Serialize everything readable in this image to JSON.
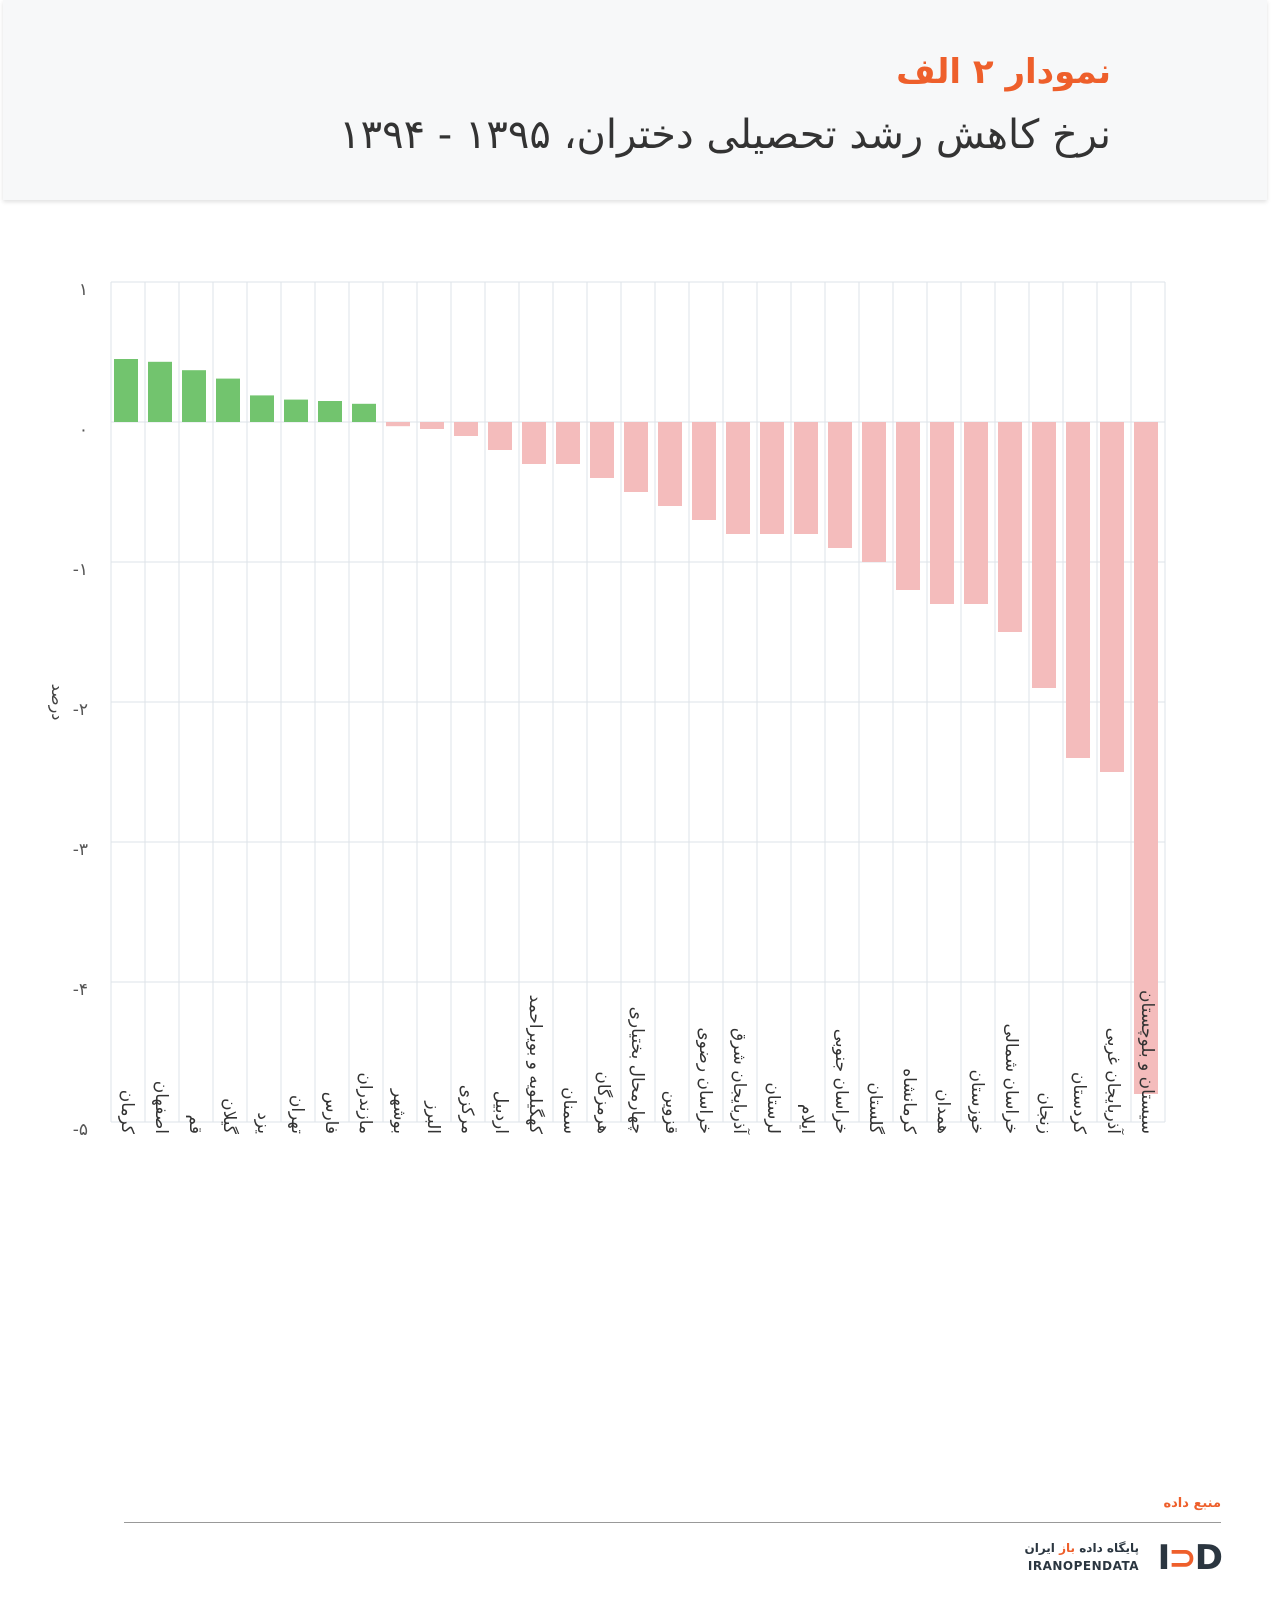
{
  "header": {
    "chart_label": "نمودار ۲ الف",
    "chart_title": "نرخ کاهش رشد تحصیلی دختران، ۱۳۹۵ - ۱۳۹۴"
  },
  "colors": {
    "accent": "#ee5f2b",
    "positive_bar": "#72c46e",
    "negative_bar": "#f4bcbc",
    "grid": "#dde3e8"
  },
  "chart_data": {
    "type": "bar",
    "ylabel": "درصد",
    "ylim": [
      -5,
      1
    ],
    "yticks": [
      {
        "value": 1,
        "label": "۱"
      },
      {
        "value": 0,
        "label": "۰"
      },
      {
        "value": -1,
        "label": "-۱"
      },
      {
        "value": -2,
        "label": "-۲"
      },
      {
        "value": -3,
        "label": "-۳"
      },
      {
        "value": -4,
        "label": "-۴"
      },
      {
        "value": -5,
        "label": "-۵"
      }
    ],
    "grid": true,
    "categories": [
      "کرمان",
      "اصفهان",
      "قم",
      "گیلان",
      "یزد",
      "تهران",
      "فارس",
      "مازندران",
      "بوشهر",
      "البرز",
      "مرکزی",
      "اردبیل",
      "کهگیلویه و بویراحمد",
      "سمنان",
      "هرمزگان",
      "چهارمحال بختیاری",
      "قزوین",
      "خراسان رضوی",
      "آذربایجان شرق",
      "لرستان",
      "ایلام",
      "خراسان جنوبی",
      "گلستان",
      "کرمانشاه",
      "همدان",
      "خوزستان",
      "خراسان شمالی",
      "زنجان",
      "کردستان",
      "آذربایجان غربی",
      "سیستان و بلوچستان"
    ],
    "values": [
      0.45,
      0.43,
      0.37,
      0.31,
      0.19,
      0.16,
      0.15,
      0.13,
      -0.03,
      -0.05,
      -0.1,
      -0.2,
      -0.3,
      -0.3,
      -0.4,
      -0.5,
      -0.6,
      -0.7,
      -0.8,
      -0.8,
      -0.8,
      -0.9,
      -1.0,
      -1.2,
      -1.3,
      -1.3,
      -1.5,
      -1.9,
      -2.4,
      -2.5,
      -4.8
    ]
  },
  "footer": {
    "source_label": "منبع داده",
    "logo_fa_prefix": "پایگاه داده ",
    "logo_fa_accent": "باز",
    "logo_fa_suffix": " ایران",
    "logo_en": "IRANOPENDATA"
  }
}
